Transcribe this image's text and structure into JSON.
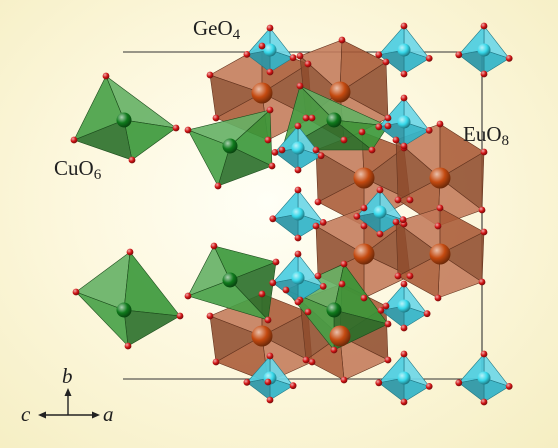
{
  "labels": {
    "geo4": {
      "base": "GeO",
      "sub": "4"
    },
    "euo8": {
      "base": "EuO",
      "sub": "8"
    },
    "cuo6": {
      "base": "CuO",
      "sub": "6"
    }
  },
  "axes": {
    "b": "b",
    "c": "c",
    "a": "a"
  },
  "colors": {
    "background": "#f5eec2",
    "cuo6_polyhedra": "#3a9a3a",
    "euo8_polyhedra": "#b8613a",
    "geo4_polyhedra": "#39c8de",
    "oxygen_atoms": "#d11414",
    "cu_atoms": "#0f7a1c",
    "eu_atoms": "#c44a10",
    "ge_atoms": "#36d8ea",
    "unit_cell": "#333333"
  }
}
